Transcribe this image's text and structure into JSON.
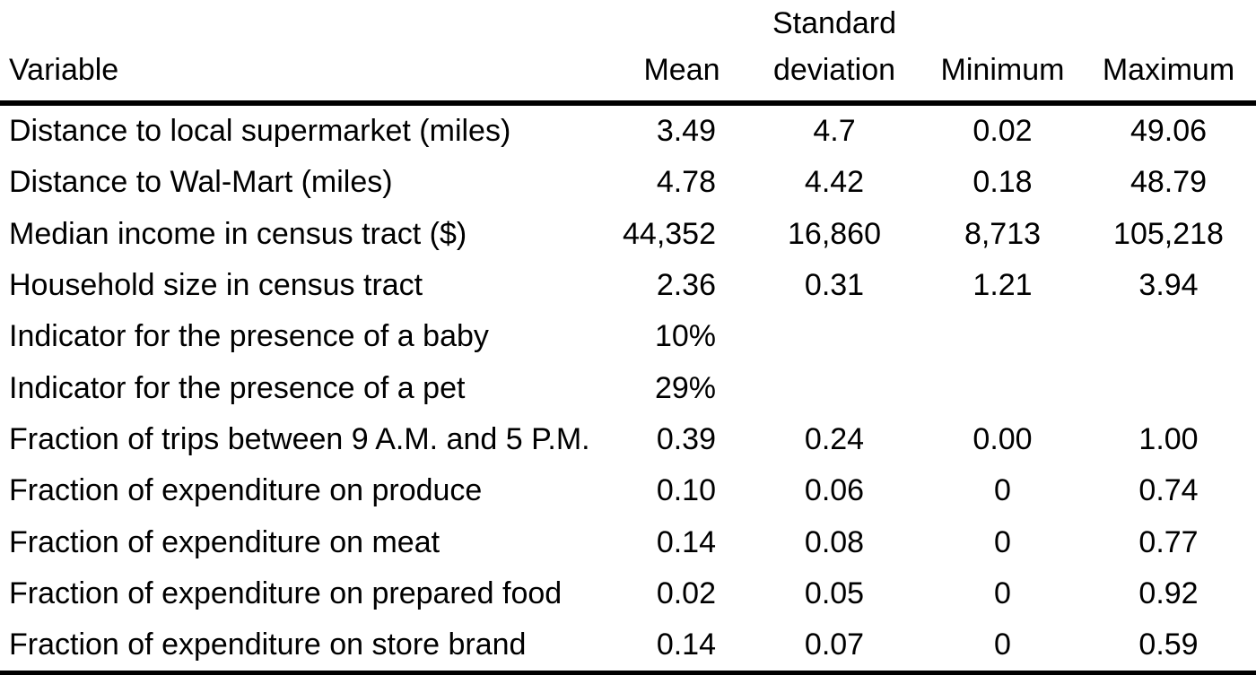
{
  "table": {
    "headers": {
      "variable": "Variable",
      "mean": "Mean",
      "sd_line1": "Standard",
      "sd_line2": "deviation",
      "minimum": "Minimum",
      "maximum": "Maximum"
    },
    "rows": [
      {
        "variable": "Distance to local supermarket (miles)",
        "mean": "3.49",
        "sd": "4.7",
        "min": "0.02",
        "max": "49.06"
      },
      {
        "variable": "Distance to Wal-Mart (miles)",
        "mean": "4.78",
        "sd": "4.42",
        "min": "0.18",
        "max": "48.79"
      },
      {
        "variable": "Median income in census tract ($)",
        "mean": "44,352",
        "sd": "16,860",
        "min": "8,713",
        "max": "105,218"
      },
      {
        "variable": "Household size in census tract",
        "mean": "2.36",
        "sd": "0.31",
        "min": "1.21",
        "max": "3.94"
      },
      {
        "variable": "Indicator for the presence of a baby",
        "mean": "10%",
        "sd": "",
        "min": "",
        "max": ""
      },
      {
        "variable": "Indicator for the presence of a pet",
        "mean": "29%",
        "sd": "",
        "min": "",
        "max": ""
      },
      {
        "variable": "Fraction of trips between 9 A.M. and 5 P.M.",
        "mean": "0.39",
        "sd": "0.24",
        "min": "0.00",
        "max": "1.00"
      },
      {
        "variable": "Fraction of expenditure on produce",
        "mean": "0.10",
        "sd": "0.06",
        "min": "0",
        "max": "0.74"
      },
      {
        "variable": "Fraction of expenditure on meat",
        "mean": "0.14",
        "sd": "0.08",
        "min": "0",
        "max": "0.77"
      },
      {
        "variable": "Fraction of expenditure on prepared food",
        "mean": "0.02",
        "sd": "0.05",
        "min": "0",
        "max": "0.92"
      },
      {
        "variable": "Fraction of expenditure on store brand",
        "mean": "0.14",
        "sd": "0.07",
        "min": "0",
        "max": "0.59"
      }
    ]
  }
}
